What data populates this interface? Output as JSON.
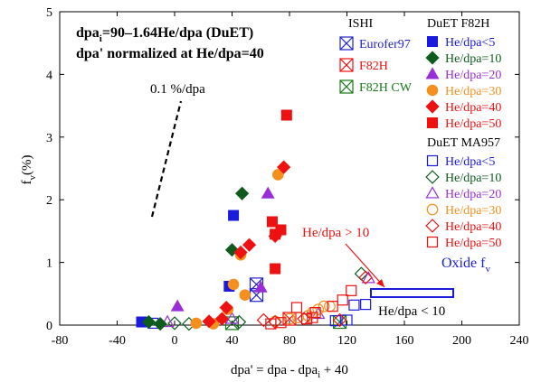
{
  "chart_data": {
    "type": "scatter",
    "xlabel": "dpa' = dpa - dpa",
    "xlabel_sub": "i",
    "xlabel_tail": " + 40",
    "ylabel": "f",
    "ylabel_sub": "v",
    "ylabel_unit": "(%)",
    "xlim": [
      -80,
      240
    ],
    "ylim": [
      0,
      5
    ],
    "xticks": [
      -80,
      -40,
      0,
      40,
      80,
      120,
      160,
      200,
      240
    ],
    "yticks": [
      0,
      1,
      2,
      3,
      4,
      5
    ],
    "grid": false,
    "annotations": {
      "formula_a": "dpa",
      "formula_sub": "i",
      "formula_b": "=90–1.64He/dpa (DuET)",
      "normalized": "dpa' normalized  at He/dpa=40",
      "rate": "0.1 %/dpa",
      "he_gt": "He/dpa > 10",
      "he_lt": "He/dpa < 10",
      "oxide": "Oxide f",
      "oxide_sub": "v"
    },
    "legend_groups": [
      {
        "title": "ISHI",
        "entries": [
          {
            "label": "Eurofer97",
            "color": "#2222cc"
          },
          {
            "label": "F82H",
            "color": "#ee1111"
          },
          {
            "label": "F82H CW",
            "color": "#1a7a1a"
          }
        ]
      },
      {
        "title": "DuET F82H",
        "entries": [
          {
            "label": "He/dpa<5",
            "color": "#1a1adc"
          },
          {
            "label": "He/dpa=10",
            "color": "#0d5c1e"
          },
          {
            "label": "He/dpa=20",
            "color": "#9a2ed6"
          },
          {
            "label": "He/dpa=30",
            "color": "#f5901e"
          },
          {
            "label": "He/dpa=40",
            "color": "#ee1111"
          },
          {
            "label": "He/dpa=50",
            "color": "#ee1111"
          }
        ]
      },
      {
        "title": "DuET MA957",
        "entries": [
          {
            "label": "He/dpa<5",
            "color": "#1a1adc"
          },
          {
            "label": "He/dpa=10",
            "color": "#0d5c1e"
          },
          {
            "label": "He/dpa=20",
            "color": "#9a2ed6"
          },
          {
            "label": "He/dpa=30",
            "color": "#f5901e"
          },
          {
            "label": "He/dpa=40",
            "color": "#ee1111"
          },
          {
            "label": "He/dpa=50",
            "color": "#ee1111"
          }
        ]
      }
    ],
    "series": [
      {
        "group": "DuET F82H",
        "label": "He/dpa<5",
        "marker": "square",
        "filled": true,
        "color": "#1a1adc",
        "points": [
          [
            -23,
            0.05
          ],
          [
            38,
            0.62
          ],
          [
            41,
            1.75
          ]
        ]
      },
      {
        "group": "DuET F82H",
        "label": "He/dpa=10",
        "marker": "diamond",
        "filled": true,
        "color": "#0d5c1e",
        "points": [
          [
            -18,
            0.05
          ],
          [
            -10,
            0.02
          ],
          [
            40,
            1.2
          ],
          [
            47,
            2.1
          ]
        ]
      },
      {
        "group": "DuET F82H",
        "label": "He/dpa=20",
        "marker": "triangle",
        "filled": true,
        "color": "#9a2ed6",
        "points": [
          [
            2,
            0.3
          ],
          [
            65,
            2.1
          ],
          [
            60,
            0.6
          ]
        ]
      },
      {
        "group": "DuET F82H",
        "label": "He/dpa=30",
        "marker": "circle",
        "filled": true,
        "color": "#f5901e",
        "points": [
          [
            15,
            0.03
          ],
          [
            27,
            0.02
          ],
          [
            37,
            0.25
          ],
          [
            41,
            0.65
          ],
          [
            46,
            1.12
          ],
          [
            49,
            0.48
          ],
          [
            72,
            2.4
          ]
        ]
      },
      {
        "group": "DuET F82H",
        "label": "He/dpa=40",
        "marker": "diamond",
        "filled": true,
        "color": "#ee1111",
        "points": [
          [
            24,
            0.06
          ],
          [
            33,
            0.1
          ],
          [
            36,
            0.28
          ],
          [
            46,
            1.16
          ],
          [
            52,
            1.28
          ],
          [
            70,
            1.42
          ],
          [
            76,
            2.52
          ]
        ]
      },
      {
        "group": "DuET F82H",
        "label": "He/dpa=50",
        "marker": "square",
        "filled": true,
        "color": "#ee1111",
        "points": [
          [
            68,
            1.65
          ],
          [
            70,
            1.45
          ],
          [
            74,
            1.52
          ],
          [
            70,
            0.9
          ],
          [
            78,
            3.35
          ]
        ]
      },
      {
        "group": "ISHI",
        "label": "Eurofer97",
        "marker": "xsquare",
        "filled": false,
        "color": "#2222cc",
        "points": [
          [
            57,
            0.48
          ],
          [
            57,
            0.65
          ]
        ]
      },
      {
        "group": "ISHI",
        "label": "F82H",
        "marker": "xsquare",
        "filled": false,
        "color": "#ee1111",
        "points": [
          [
            80,
            0.1
          ]
        ]
      },
      {
        "group": "ISHI",
        "label": "F82H CW",
        "marker": "xsquare",
        "filled": false,
        "color": "#1a7a1a",
        "points": [
          [
            40,
            0.03
          ],
          [
            115,
            0.05
          ]
        ]
      },
      {
        "group": "DuET MA957",
        "label": "He/dpa<5",
        "marker": "square",
        "filled": false,
        "color": "#1a1adc",
        "points": [
          [
            -15,
            0.03
          ],
          [
            112,
            0.07
          ],
          [
            120,
            0.08
          ],
          [
            125,
            0.32
          ],
          [
            133,
            0.33
          ]
        ]
      },
      {
        "group": "DuET MA957",
        "label": "He/dpa=10",
        "marker": "diamond",
        "filled": false,
        "color": "#0d5c1e",
        "points": [
          [
            0,
            0.03
          ],
          [
            10,
            0.02
          ],
          [
            45,
            0.05
          ],
          [
            130,
            0.82
          ]
        ]
      },
      {
        "group": "DuET MA957",
        "label": "He/dpa=20",
        "marker": "triangle",
        "filled": false,
        "color": "#9a2ed6",
        "points": [
          [
            -5,
            0.05
          ],
          [
            40,
            0.1
          ],
          [
            100,
            0.18
          ],
          [
            135,
            0.75
          ]
        ]
      },
      {
        "group": "DuET MA957",
        "label": "He/dpa=30",
        "marker": "circle",
        "filled": false,
        "color": "#f5901e",
        "points": [
          [
            70,
            0.06
          ],
          [
            80,
            0.1
          ],
          [
            86,
            0.12
          ],
          [
            93,
            0.15
          ],
          [
            96,
            0.2
          ],
          [
            100,
            0.25
          ],
          [
            104,
            0.3
          ],
          [
            108,
            0.3
          ]
        ]
      },
      {
        "group": "DuET MA957",
        "label": "He/dpa=40",
        "marker": "diamond",
        "filled": false,
        "color": "#ee1111",
        "points": [
          [
            62,
            0.08
          ],
          [
            70,
            0.05
          ],
          [
            90,
            0.1
          ],
          [
            115,
            0.08
          ],
          [
            133,
            0.76
          ]
        ]
      },
      {
        "group": "DuET MA957",
        "label": "He/dpa=50",
        "marker": "square",
        "filled": false,
        "color": "#ee1111",
        "points": [
          [
            67,
            0.02
          ],
          [
            74,
            0.04
          ],
          [
            85,
            0.28
          ],
          [
            92,
            0.1
          ],
          [
            96,
            0.12
          ],
          [
            98,
            0.2
          ],
          [
            110,
            0.3
          ],
          [
            117,
            0.4
          ],
          [
            123,
            0.55
          ]
        ]
      }
    ]
  }
}
